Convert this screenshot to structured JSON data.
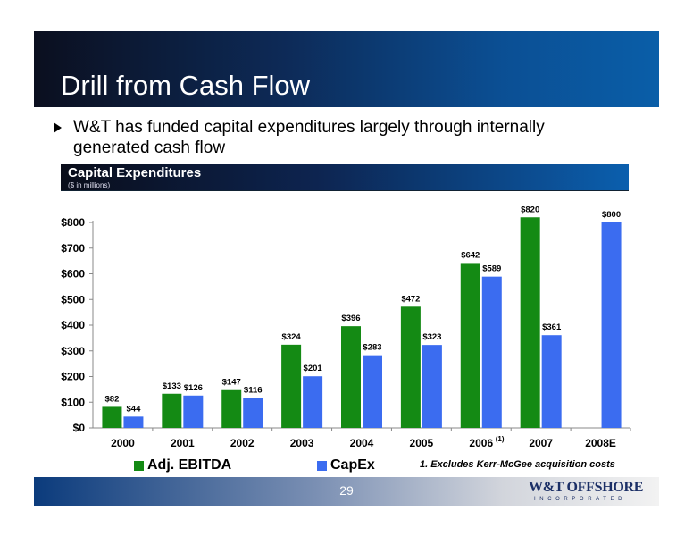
{
  "slide": {
    "title": "Drill from Cash Flow",
    "bullet": "W&T has funded capital expenditures largely through internally generated cash flow",
    "section_title": "Capital Expenditures",
    "section_subtitle": "($ in millions)",
    "footnote": "1. Excludes Kerr-McGee acquisition costs",
    "page_number": "29",
    "logo_text": "W&T OFFSHORE",
    "logo_subtext": "INCORPORATED"
  },
  "colors": {
    "ebitda": "#148a14",
    "capex": "#3b6cf0"
  },
  "chart_data": {
    "type": "bar",
    "categories": [
      "2000",
      "2001",
      "2002",
      "2003",
      "2004",
      "2005",
      "2006",
      "2007",
      "2008E"
    ],
    "category_superscripts": [
      "",
      "",
      "",
      "",
      "",
      "",
      "(1)",
      "",
      ""
    ],
    "series": [
      {
        "name": "Adj. EBITDA",
        "values": [
          82,
          133,
          147,
          324,
          396,
          472,
          642,
          820,
          null
        ],
        "labels": [
          "$82",
          "$133",
          "$147",
          "$324",
          "$396",
          "$472",
          "$642",
          "$820",
          ""
        ]
      },
      {
        "name": "CapEx",
        "values": [
          44,
          126,
          116,
          201,
          283,
          323,
          589,
          361,
          800
        ],
        "labels": [
          "$44",
          "$126",
          "$116",
          "$201",
          "$283",
          "$323",
          "$589",
          "$361",
          "$800"
        ]
      }
    ],
    "yticks": [
      "$0",
      "$100",
      "$200",
      "$300",
      "$400",
      "$500",
      "$600",
      "$700",
      "$800"
    ],
    "ylim": [
      0,
      800
    ],
    "grid": false,
    "legend_position": "bottom-left"
  }
}
